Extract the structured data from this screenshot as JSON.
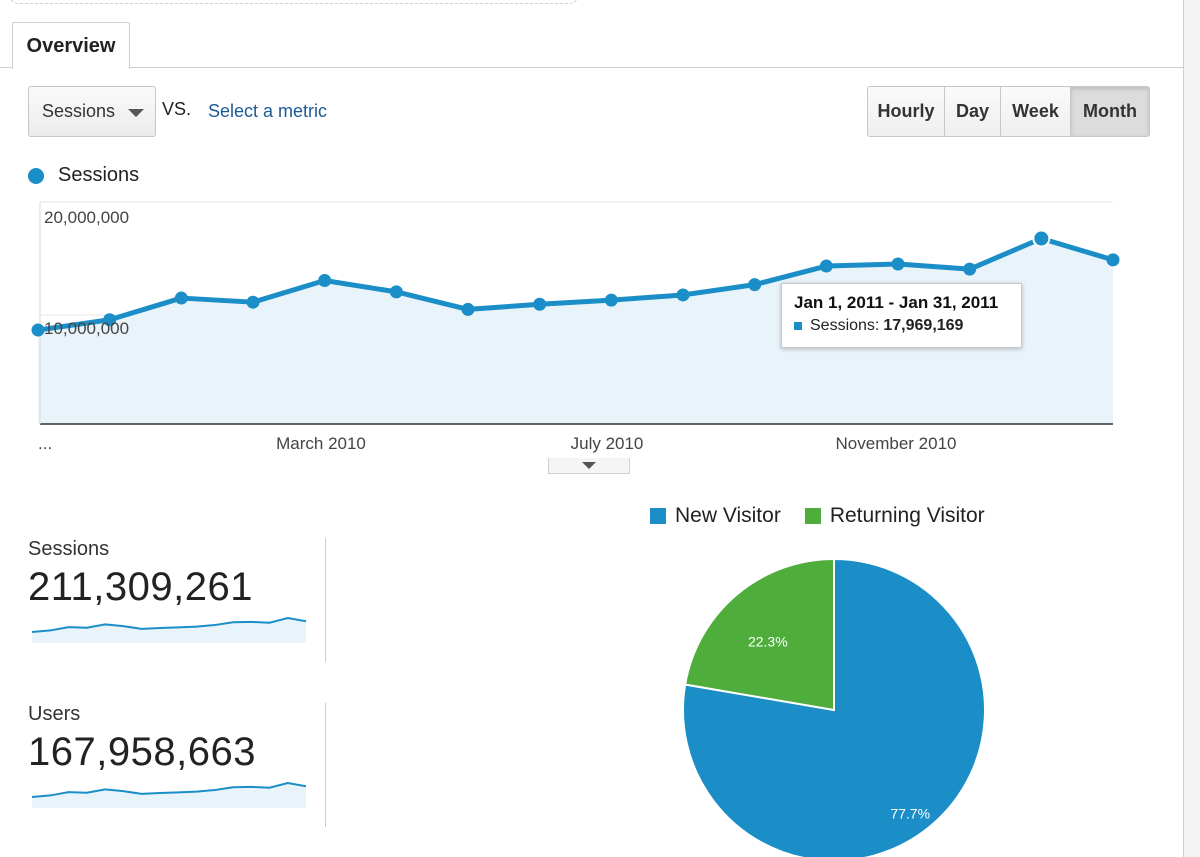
{
  "tabs": [
    {
      "label": "Overview",
      "active": true
    }
  ],
  "metric_selector": {
    "selected": "Sessions",
    "vs_label": "VS.",
    "select_metric_link": "Select a metric"
  },
  "granularity": {
    "options": [
      {
        "label": "Hourly",
        "active": false
      },
      {
        "label": "Day",
        "active": false
      },
      {
        "label": "Week",
        "active": false
      },
      {
        "label": "Month",
        "active": true
      }
    ]
  },
  "colors": {
    "accent": "#1b8ec8",
    "returning": "#4fad3c",
    "area_fill": "#e8f3fa"
  },
  "chart_data": [
    {
      "type": "area",
      "legend": "Sessions",
      "y_tick_labels": [
        "20,000,000",
        "10,000,000"
      ],
      "x_tick_labels": [
        "...",
        "March 2010",
        "July 2010",
        "November 2010"
      ],
      "ylim": [
        0,
        20000000
      ],
      "series": [
        {
          "name": "Sessions",
          "values": [
            9100000,
            10100000,
            12200000,
            11800000,
            13900000,
            12800000,
            11100000,
            11600000,
            12000000,
            12500000,
            13500000,
            15300000,
            15500000,
            15000000,
            17969169,
            15900000
          ]
        }
      ],
      "tooltip": {
        "title": "Jan 1, 2011 - Jan 31, 2011",
        "metric": "Sessions:",
        "value": "17,969,169"
      }
    },
    {
      "type": "pie",
      "legend": [
        "New Visitor",
        "Returning Visitor"
      ],
      "slices": [
        {
          "name": "New Visitor",
          "value": 77.7,
          "label": "77.7%",
          "color": "#1b8ec8"
        },
        {
          "name": "Returning Visitor",
          "value": 22.3,
          "label": "22.3%",
          "color": "#4fad3c"
        }
      ]
    }
  ],
  "kpis": [
    {
      "label": "Sessions",
      "value": "211,309,261"
    },
    {
      "label": "Users",
      "value": "167,958,663"
    }
  ]
}
